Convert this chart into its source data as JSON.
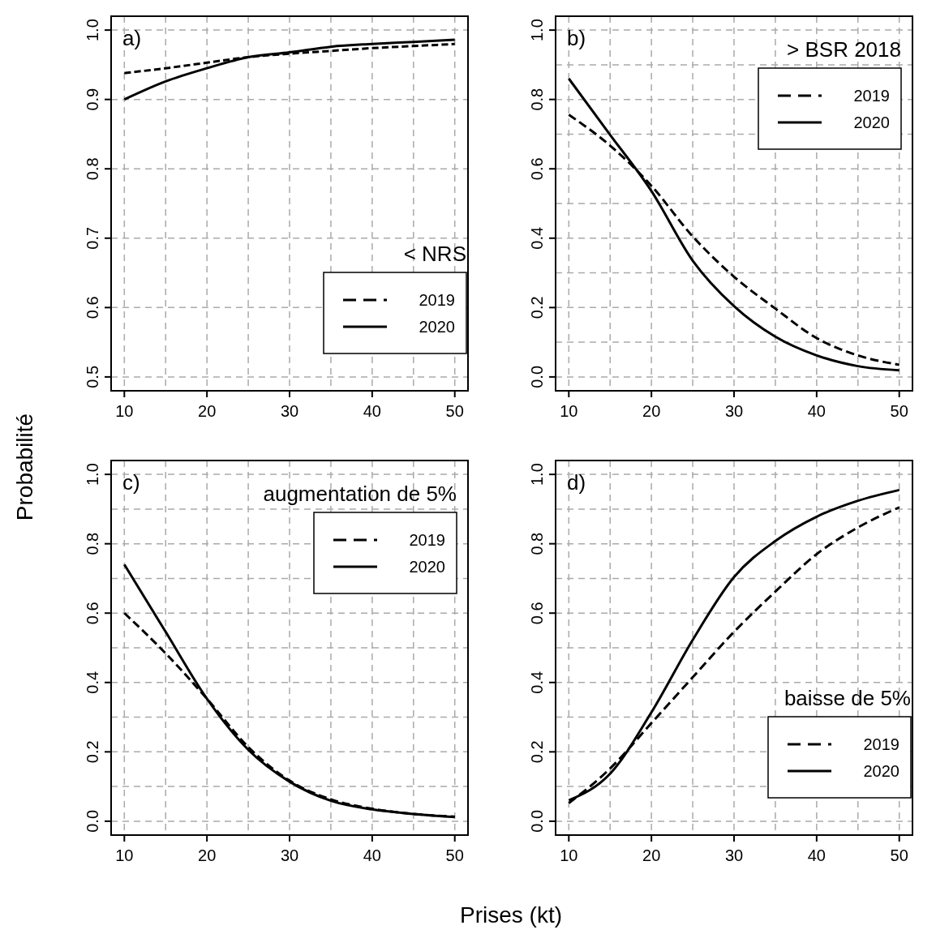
{
  "chart_data": [
    {
      "type": "line",
      "title": "a)",
      "legend_title": "< NRS",
      "ylabel": "Probabilité",
      "x": [
        10,
        15,
        20,
        25,
        30,
        35,
        40,
        45,
        50
      ],
      "series": [
        {
          "name": "2019",
          "color": "#000000",
          "line_style": "dashed",
          "values": [
            0.938,
            0.945,
            0.953,
            0.961,
            0.966,
            0.97,
            0.974,
            0.977,
            0.98
          ]
        },
        {
          "name": "2020",
          "color": "#000000",
          "line_style": "solid",
          "values": [
            0.9,
            0.926,
            0.945,
            0.961,
            0.968,
            0.976,
            0.98,
            0.983,
            0.986
          ]
        }
      ],
      "xlim": [
        8.4,
        51.6
      ],
      "ylim": [
        0.48,
        1.02
      ],
      "xticks": [
        10,
        {
          "value": 15,
          "label": null
        },
        20,
        {
          "value": 25,
          "label": null
        },
        30,
        {
          "value": 35,
          "label": null
        },
        40,
        {
          "value": 45,
          "label": null
        },
        50
      ],
      "yticks": [
        0.5,
        0.6,
        0.7,
        0.8,
        0.9,
        {
          "value": 1,
          "label": "1.0"
        }
      ],
      "grid": true,
      "legend": "bottom right"
    },
    {
      "type": "line",
      "title": "b)",
      "legend_title": "> BSR 2018",
      "x": [
        10,
        15,
        20,
        25,
        30,
        35,
        40,
        45,
        50
      ],
      "series": [
        {
          "name": "2019",
          "color": "#000000",
          "line_style": "dashed",
          "values": [
            0.756,
            0.667,
            0.551,
            0.405,
            0.289,
            0.197,
            0.112,
            0.062,
            0.035
          ]
        },
        {
          "name": "2020",
          "color": "#000000",
          "line_style": "solid",
          "values": [
            0.86,
            0.698,
            0.536,
            0.335,
            0.204,
            0.116,
            0.062,
            0.031,
            0.019
          ]
        }
      ],
      "xlim": [
        8.4,
        51.6
      ],
      "ylim": [
        -0.04,
        1.04
      ],
      "xticks": [
        10,
        {
          "value": 15,
          "label": null
        },
        20,
        {
          "value": 25,
          "label": null
        },
        30,
        {
          "value": 35,
          "label": null
        },
        40,
        {
          "value": 45,
          "label": null
        },
        50
      ],
      "yticks": [
        {
          "value": 0,
          "label": "0.0"
        },
        {
          "value": 0.1,
          "label": null
        },
        0.2,
        {
          "value": 0.3,
          "label": null
        },
        0.4,
        {
          "value": 0.5,
          "label": null
        },
        0.6,
        {
          "value": 0.7,
          "label": null
        },
        0.8,
        {
          "value": 0.9,
          "label": null
        },
        {
          "value": 1,
          "label": "1.0"
        }
      ],
      "grid": true,
      "legend": "top right"
    },
    {
      "type": "line",
      "title": "c)",
      "legend_title": "augmentation de 5%",
      "xlabel": "Prises (kt)",
      "x": [
        10,
        15,
        20,
        25,
        30,
        35,
        40,
        45,
        50
      ],
      "series": [
        {
          "name": "2019",
          "color": "#000000",
          "line_style": "dashed",
          "values": [
            0.6,
            0.484,
            0.353,
            0.214,
            0.117,
            0.063,
            0.036,
            0.021,
            0.013
          ]
        },
        {
          "name": "2020",
          "color": "#000000",
          "line_style": "solid",
          "values": [
            0.74,
            0.546,
            0.353,
            0.206,
            0.114,
            0.059,
            0.034,
            0.021,
            0.012
          ]
        }
      ],
      "xlim": [
        8.4,
        51.6
      ],
      "ylim": [
        -0.04,
        1.04
      ],
      "xticks": [
        10,
        {
          "value": 15,
          "label": null
        },
        20,
        {
          "value": 25,
          "label": null
        },
        30,
        {
          "value": 35,
          "label": null
        },
        40,
        {
          "value": 45,
          "label": null
        },
        50
      ],
      "yticks": [
        {
          "value": 0,
          "label": "0.0"
        },
        {
          "value": 0.1,
          "label": null
        },
        0.2,
        {
          "value": 0.3,
          "label": null
        },
        0.4,
        {
          "value": 0.5,
          "label": null
        },
        0.6,
        {
          "value": 0.7,
          "label": null
        },
        0.8,
        {
          "value": 0.9,
          "label": null
        },
        {
          "value": 1,
          "label": "1.0"
        }
      ],
      "grid": true,
      "legend": "top right"
    },
    {
      "type": "line",
      "title": "d)",
      "legend_title": "baisse de 5%",
      "x": [
        10,
        15,
        20,
        25,
        30,
        35,
        40,
        45,
        50
      ],
      "series": [
        {
          "name": "2019",
          "color": "#000000",
          "line_style": "dashed",
          "values": [
            0.052,
            0.152,
            0.283,
            0.415,
            0.546,
            0.662,
            0.77,
            0.847,
            0.905
          ]
        },
        {
          "name": "2020",
          "color": "#000000",
          "line_style": "solid",
          "values": [
            0.06,
            0.137,
            0.314,
            0.523,
            0.704,
            0.808,
            0.878,
            0.924,
            0.955
          ]
        }
      ],
      "xlim": [
        8.4,
        51.6
      ],
      "ylim": [
        -0.04,
        1.04
      ],
      "xticks": [
        10,
        {
          "value": 15,
          "label": null
        },
        20,
        {
          "value": 25,
          "label": null
        },
        30,
        {
          "value": 35,
          "label": null
        },
        40,
        {
          "value": 45,
          "label": null
        },
        50
      ],
      "yticks": [
        {
          "value": 0,
          "label": "0.0"
        },
        {
          "value": 0.1,
          "label": null
        },
        0.2,
        {
          "value": 0.3,
          "label": null
        },
        0.4,
        {
          "value": 0.5,
          "label": null
        },
        0.6,
        {
          "value": 0.7,
          "label": null
        },
        0.8,
        {
          "value": 0.9,
          "label": null
        },
        {
          "value": 1,
          "label": "1.0"
        }
      ],
      "grid": true,
      "legend": "bottom right"
    }
  ]
}
